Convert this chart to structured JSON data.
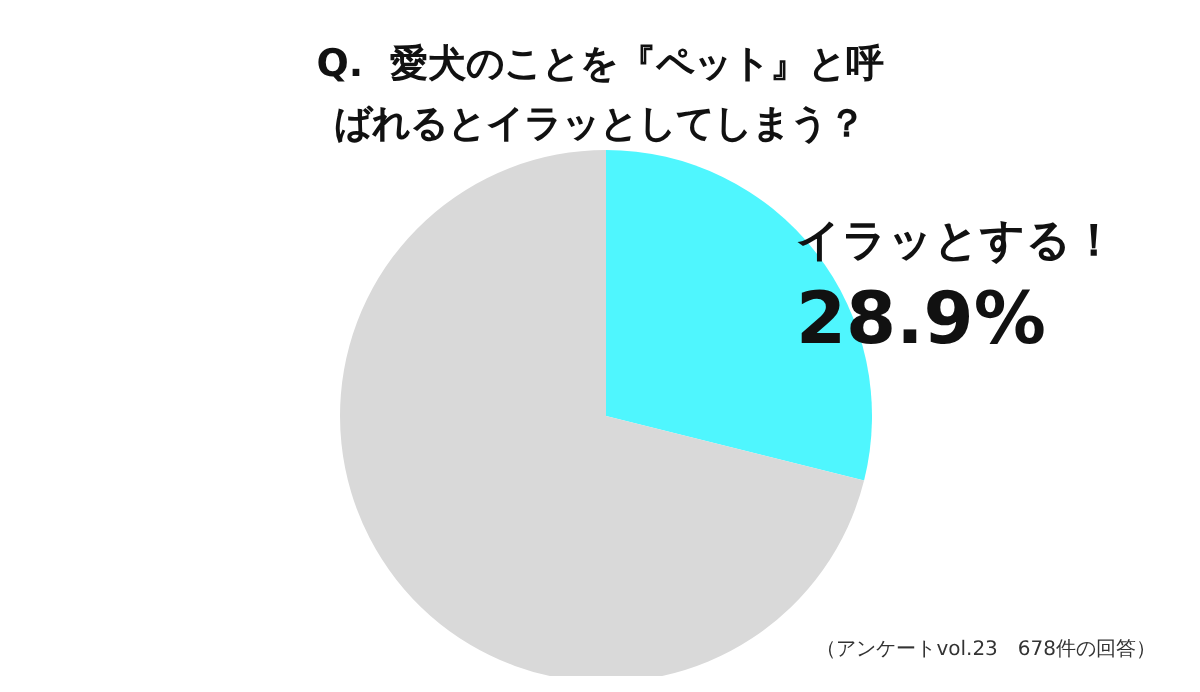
{
  "chart_data": {
    "type": "pie",
    "title": "Q.  愛犬のことを『ペット』と呼ばれるとイラッとしてしまう？",
    "categories": [
      "イラッとする！",
      null
    ],
    "values": [
      28.9,
      71.1
    ],
    "colors": [
      "#4ff6fe",
      "#d9d9d9"
    ],
    "value_labels": [
      "28.9%",
      null
    ],
    "annotations": [
      "（アンケートvol.23　678件の回答）"
    ]
  }
}
